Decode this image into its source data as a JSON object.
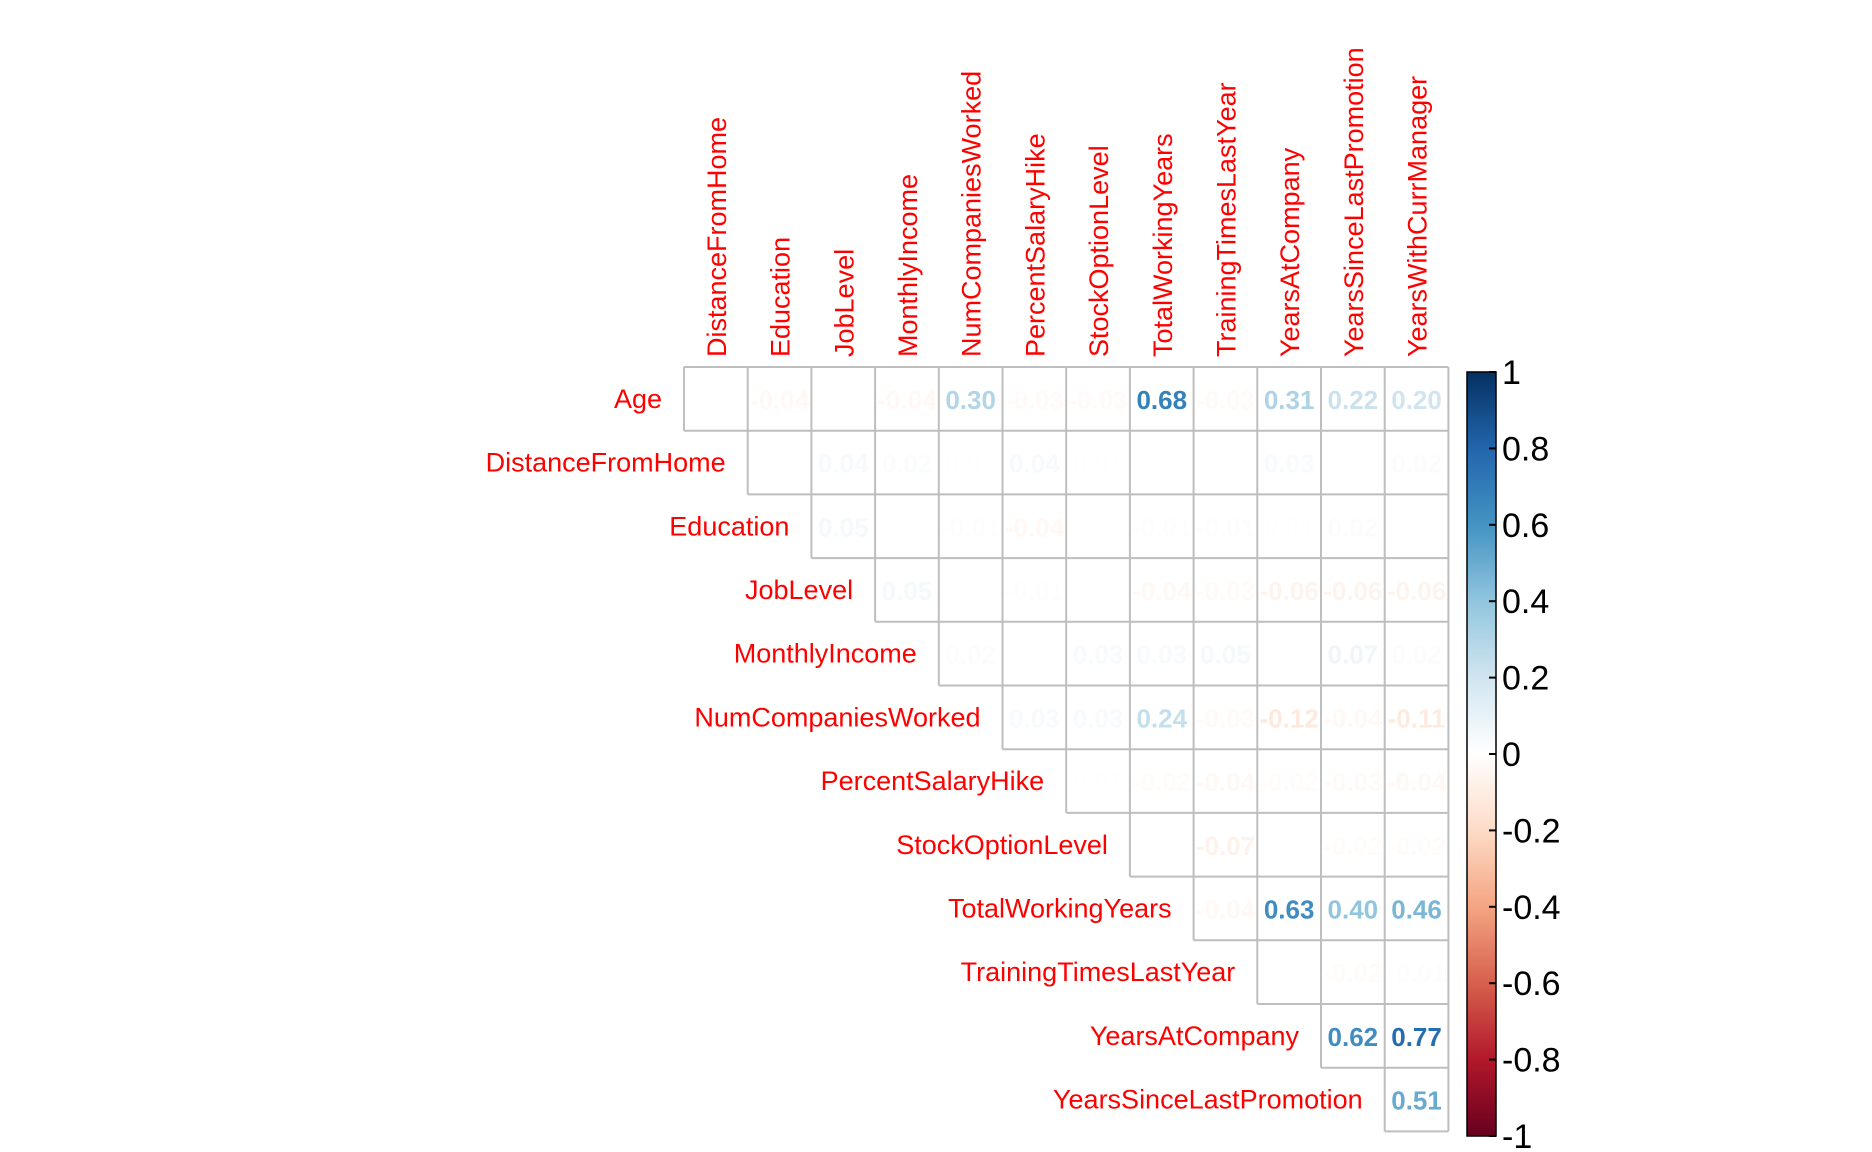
{
  "chart_data": {
    "type": "heatmap",
    "variables": [
      "Age",
      "DistanceFromHome",
      "Education",
      "JobLevel",
      "MonthlyIncome",
      "NumCompaniesWorked",
      "PercentSalaryHike",
      "StockOptionLevel",
      "TotalWorkingYears",
      "TrainingTimesLastYear",
      "YearsAtCompany",
      "YearsSinceLastPromotion",
      "YearsWithCurrManager"
    ],
    "row_labels": [
      "Age",
      "DistanceFromHome",
      "Education",
      "JobLevel",
      "MonthlyIncome",
      "NumCompaniesWorked",
      "PercentSalaryHike",
      "StockOptionLevel",
      "TotalWorkingYears",
      "TrainingTimesLastYear",
      "YearsAtCompany",
      "YearsSinceLastPromotion"
    ],
    "column_labels": [
      "DistanceFromHome",
      "Education",
      "JobLevel",
      "MonthlyIncome",
      "NumCompaniesWorked",
      "PercentSalaryHike",
      "StockOptionLevel",
      "TotalWorkingYears",
      "TrainingTimesLastYear",
      "YearsAtCompany",
      "YearsSinceLastPromotion",
      "YearsWithCurrManager"
    ],
    "upper_triangle_rows": [
      [
        0.0,
        -0.04,
        0.0,
        -0.04,
        0.3,
        -0.03,
        -0.03,
        0.68,
        -0.03,
        0.31,
        0.22,
        0.2
      ],
      [
        0.0,
        0.04,
        0.02,
        0.01,
        0.04,
        0.01,
        0.0,
        0.0,
        0.03,
        0.0,
        0.02
      ],
      [
        0.05,
        0.0,
        -0.01,
        -0.04,
        0.0,
        -0.01,
        -0.01,
        0.01,
        0.02,
        0.0
      ],
      [
        0.05,
        0.0,
        -0.01,
        0.0,
        -0.04,
        -0.03,
        -0.06,
        -0.06,
        -0.06
      ],
      [
        0.02,
        0.0,
        0.03,
        0.03,
        0.05,
        0.0,
        0.07,
        0.02
      ],
      [
        0.03,
        0.03,
        0.24,
        -0.03,
        -0.12,
        -0.04,
        -0.11
      ],
      [
        0.01,
        -0.02,
        -0.04,
        -0.02,
        -0.03,
        -0.04
      ],
      [
        0.0,
        -0.07,
        0.0,
        -0.02,
        -0.02
      ],
      [
        -0.04,
        0.63,
        0.4,
        0.46
      ],
      [
        0.0,
        -0.02,
        -0.01
      ],
      [
        0.62,
        0.77
      ],
      [
        0.51
      ]
    ],
    "colorbar": {
      "range": [
        -1,
        1
      ],
      "tick_labels": [
        "1",
        "0.8",
        "0.6",
        "0.4",
        "0.2",
        "0",
        "-0.2",
        "-0.4",
        "-0.6",
        "-0.8",
        "-1"
      ],
      "palette": [
        "#67001F",
        "#B2182B",
        "#D6604D",
        "#F4A582",
        "#FDDBC7",
        "#FFFFFF",
        "#D1E5F0",
        "#92C5DE",
        "#4393C3",
        "#2166AC",
        "#053061"
      ]
    },
    "label_color": "#FF0000",
    "grid_color": "#BEBEBE"
  }
}
